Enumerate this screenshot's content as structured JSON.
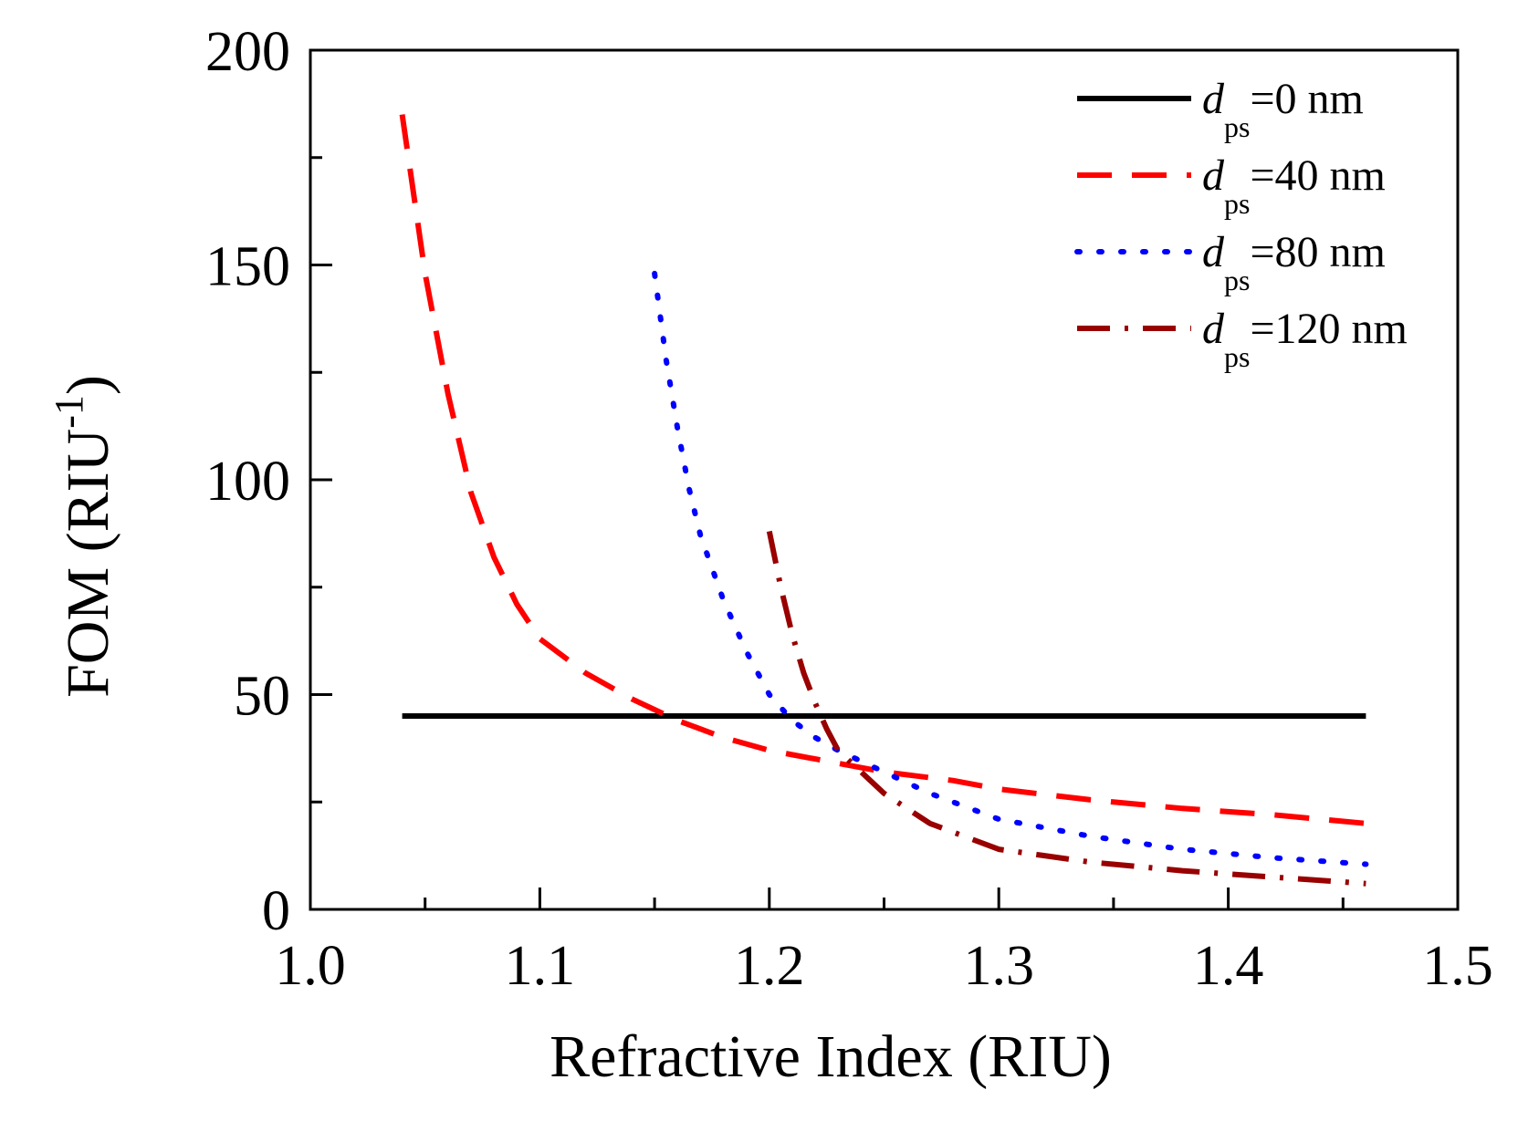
{
  "chart_data": {
    "type": "line",
    "title": "",
    "xlabel": "Refractive Index (RIU)",
    "ylabel": {
      "main": "FOM (RIU",
      "superscript": "-1",
      "close": ")"
    },
    "xlim": [
      1.0,
      1.5
    ],
    "ylim": [
      0,
      200
    ],
    "x_ticks": [
      1.0,
      1.1,
      1.2,
      1.3,
      1.4,
      1.5
    ],
    "x_tick_labels": [
      "1.0",
      "1.1",
      "1.2",
      "1.3",
      "1.4",
      "1.5"
    ],
    "x_minor_ticks": [
      1.05,
      1.15,
      1.25,
      1.35,
      1.45
    ],
    "y_ticks": [
      0,
      50,
      100,
      150,
      200
    ],
    "y_tick_labels": [
      "0",
      "50",
      "100",
      "150",
      "200"
    ],
    "y_minor_ticks": [
      25,
      75,
      125,
      175
    ],
    "grid": false,
    "legend_position": "top-right",
    "series": [
      {
        "name": "d_ps=0 nm",
        "legend": {
          "symbol": "d",
          "sub": "ps",
          "text": "=0 nm"
        },
        "color": "#000000",
        "style": "solid",
        "x": [
          1.04,
          1.46
        ],
        "y": [
          45,
          45
        ]
      },
      {
        "name": "d_ps=40 nm",
        "legend": {
          "symbol": "d",
          "sub": "ps",
          "text": "=40 nm"
        },
        "color": "#ff0000",
        "style": "dashed",
        "x": [
          1.04,
          1.05,
          1.06,
          1.07,
          1.08,
          1.09,
          1.1,
          1.12,
          1.14,
          1.16,
          1.18,
          1.2,
          1.22,
          1.25,
          1.28,
          1.3,
          1.34,
          1.38,
          1.42,
          1.46
        ],
        "y": [
          185,
          148,
          120,
          97,
          82,
          71,
          63,
          55,
          49,
          44,
          40,
          37,
          35,
          32,
          30,
          28,
          25.5,
          23.5,
          22,
          20
        ]
      },
      {
        "name": "d_ps=80 nm",
        "legend": {
          "symbol": "d",
          "sub": "ps",
          "text": "=80 nm"
        },
        "color": "#0000ff",
        "style": "dotted",
        "x": [
          1.15,
          1.155,
          1.16,
          1.165,
          1.17,
          1.18,
          1.19,
          1.2,
          1.21,
          1.22,
          1.23,
          1.25,
          1.27,
          1.3,
          1.34,
          1.38,
          1.42,
          1.46
        ],
        "y": [
          148,
          128,
          112,
          98,
          87,
          72,
          60,
          50,
          44,
          40,
          37,
          32,
          27,
          21,
          17,
          14,
          12,
          10.5
        ]
      },
      {
        "name": "d_ps=120 nm",
        "legend": {
          "symbol": "d",
          "sub": "ps",
          "text": "=120 nm"
        },
        "color": "#990000",
        "style": "dash-dot",
        "x": [
          1.2,
          1.205,
          1.21,
          1.215,
          1.22,
          1.225,
          1.23,
          1.24,
          1.25,
          1.27,
          1.3,
          1.34,
          1.38,
          1.42,
          1.46
        ],
        "y": [
          88,
          75,
          64,
          55,
          48,
          42,
          37,
          32,
          27,
          20,
          14,
          11,
          9,
          7.5,
          6
        ]
      }
    ]
  }
}
